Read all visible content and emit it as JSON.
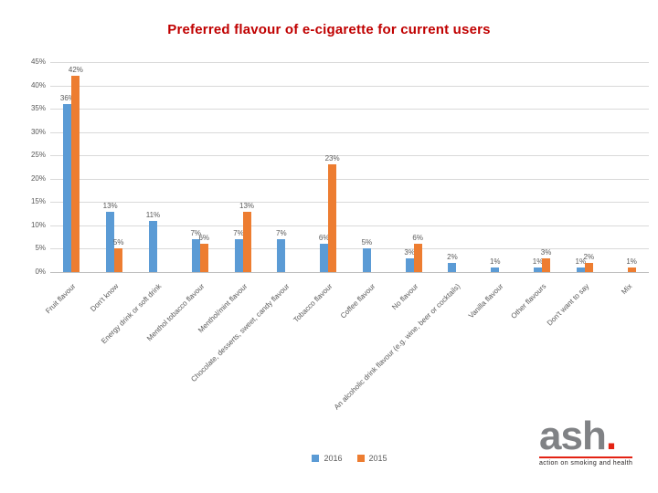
{
  "title": "Preferred flavour of e-cigarette for current users",
  "chart_data": {
    "type": "bar",
    "title": "Preferred flavour of e-cigarette for current users",
    "categories": [
      "Fruit flavour",
      "Don't know",
      "Energy drink or soft drink",
      "Menthol tobacco flavour",
      "Menthol/mint flavour",
      "Chocolate, desserts, sweet, candy flavour",
      "Tobacco flavour",
      "Coffee flavour",
      "No flavour",
      "An alcoholic drink flavour (e.g. wine, beer or cocktails)",
      "Vanilla flavour",
      "Other flavours",
      "Don't want to say",
      "Mix"
    ],
    "series": [
      {
        "name": "2016",
        "color": "#5b9bd5",
        "values": [
          36,
          13,
          11,
          7,
          7,
          7,
          6,
          5,
          3,
          2,
          1,
          1,
          1,
          null
        ]
      },
      {
        "name": "2015",
        "color": "#ed7d31",
        "values": [
          42,
          5,
          null,
          6,
          13,
          null,
          23,
          null,
          6,
          null,
          null,
          3,
          2,
          1
        ]
      }
    ],
    "ylim": [
      0,
      45
    ],
    "yticks": [
      "45%",
      "40%",
      "35%",
      "30%",
      "25%",
      "20%",
      "15%",
      "10%",
      "5%",
      "0%"
    ],
    "grid": true,
    "legend_position": "bottom",
    "data_label_suffix": "%"
  },
  "legend": {
    "items": [
      {
        "label": "2016",
        "color": "#5b9bd5"
      },
      {
        "label": "2015",
        "color": "#ed7d31"
      }
    ]
  },
  "logo": {
    "word": "ash",
    "dot": ".",
    "tagline": "action on smoking and health"
  }
}
